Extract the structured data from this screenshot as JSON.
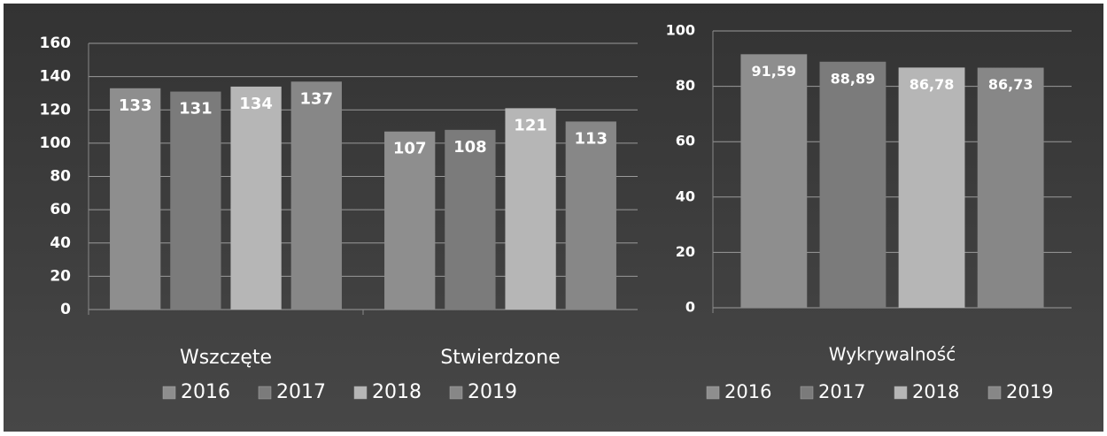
{
  "chart_data": [
    {
      "type": "bar",
      "categories": [
        "Wszczęte",
        "Stwierdzone"
      ],
      "series": [
        {
          "name": "2016",
          "color": "#8e8e8e",
          "values": [
            133,
            107
          ]
        },
        {
          "name": "2017",
          "color": "#7b7b7b",
          "values": [
            131,
            108
          ]
        },
        {
          "name": "2018",
          "color": "#b6b6b6",
          "values": [
            134,
            121
          ]
        },
        {
          "name": "2019",
          "color": "#878787",
          "values": [
            137,
            113
          ]
        }
      ],
      "ylim": [
        0,
        160
      ],
      "yticks": [
        0,
        20,
        40,
        60,
        80,
        100,
        120,
        140,
        160
      ],
      "grid": true,
      "legend": "bottom"
    },
    {
      "type": "bar",
      "categories": [
        "Wykrywalność"
      ],
      "series": [
        {
          "name": "2016",
          "color": "#8e8e8e",
          "values": [
            91.59
          ],
          "value_labels": [
            "91,59"
          ]
        },
        {
          "name": "2017",
          "color": "#7b7b7b",
          "values": [
            88.89
          ],
          "value_labels": [
            "88,89"
          ]
        },
        {
          "name": "2018",
          "color": "#b6b6b6",
          "values": [
            86.78
          ],
          "value_labels": [
            "86,78"
          ]
        },
        {
          "name": "2019",
          "color": "#878787",
          "values": [
            86.73
          ],
          "value_labels": [
            "86,73"
          ]
        }
      ],
      "ylim": [
        0,
        100
      ],
      "yticks": [
        0,
        20,
        40,
        60,
        80,
        100
      ],
      "grid": true,
      "legend": "bottom"
    }
  ]
}
